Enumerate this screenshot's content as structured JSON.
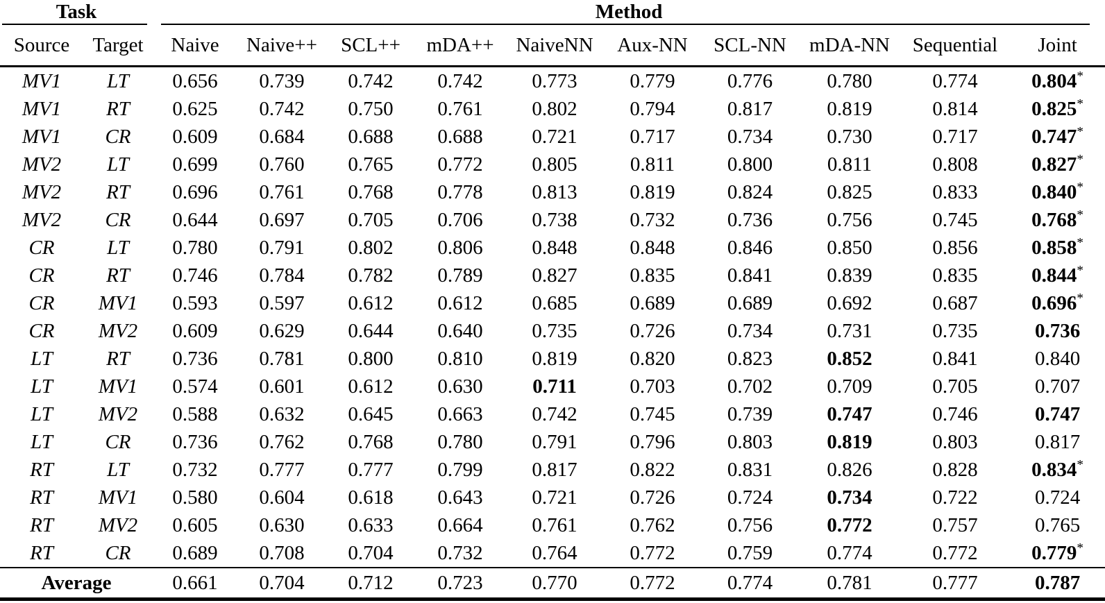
{
  "page": {
    "background": "#ffffff",
    "text_color": "#000000"
  },
  "table": {
    "group_headers": {
      "task": "Task",
      "method": "Method"
    },
    "columns": [
      "Source",
      "Target",
      "Naive",
      "Naive++",
      "SCL++",
      "mDA++",
      "NaiveNN",
      "Aux-NN",
      "SCL-NN",
      "mDA-NN",
      "Sequential",
      "Joint"
    ],
    "rows": [
      {
        "source": "MV1",
        "target": "LT",
        "values": [
          "0.656",
          "0.739",
          "0.742",
          "0.742",
          "0.773",
          "0.779",
          "0.776",
          "0.780",
          "0.774",
          "0.804"
        ],
        "bold": [
          9
        ],
        "star": [
          9
        ]
      },
      {
        "source": "MV1",
        "target": "RT",
        "values": [
          "0.625",
          "0.742",
          "0.750",
          "0.761",
          "0.802",
          "0.794",
          "0.817",
          "0.819",
          "0.814",
          "0.825"
        ],
        "bold": [
          9
        ],
        "star": [
          9
        ]
      },
      {
        "source": "MV1",
        "target": "CR",
        "values": [
          "0.609",
          "0.684",
          "0.688",
          "0.688",
          "0.721",
          "0.717",
          "0.734",
          "0.730",
          "0.717",
          "0.747"
        ],
        "bold": [
          9
        ],
        "star": [
          9
        ]
      },
      {
        "source": "MV2",
        "target": "LT",
        "values": [
          "0.699",
          "0.760",
          "0.765",
          "0.772",
          "0.805",
          "0.811",
          "0.800",
          "0.811",
          "0.808",
          "0.827"
        ],
        "bold": [
          9
        ],
        "star": [
          9
        ]
      },
      {
        "source": "MV2",
        "target": "RT",
        "values": [
          "0.696",
          "0.761",
          "0.768",
          "0.778",
          "0.813",
          "0.819",
          "0.824",
          "0.825",
          "0.833",
          "0.840"
        ],
        "bold": [
          9
        ],
        "star": [
          9
        ]
      },
      {
        "source": "MV2",
        "target": "CR",
        "values": [
          "0.644",
          "0.697",
          "0.705",
          "0.706",
          "0.738",
          "0.732",
          "0.736",
          "0.756",
          "0.745",
          "0.768"
        ],
        "bold": [
          9
        ],
        "star": [
          9
        ]
      },
      {
        "source": "CR",
        "target": "LT",
        "values": [
          "0.780",
          "0.791",
          "0.802",
          "0.806",
          "0.848",
          "0.848",
          "0.846",
          "0.850",
          "0.856",
          "0.858"
        ],
        "bold": [
          9
        ],
        "star": [
          9
        ]
      },
      {
        "source": "CR",
        "target": "RT",
        "values": [
          "0.746",
          "0.784",
          "0.782",
          "0.789",
          "0.827",
          "0.835",
          "0.841",
          "0.839",
          "0.835",
          "0.844"
        ],
        "bold": [
          9
        ],
        "star": [
          9
        ]
      },
      {
        "source": "CR",
        "target": "MV1",
        "values": [
          "0.593",
          "0.597",
          "0.612",
          "0.612",
          "0.685",
          "0.689",
          "0.689",
          "0.692",
          "0.687",
          "0.696"
        ],
        "bold": [
          9
        ],
        "star": [
          9
        ]
      },
      {
        "source": "CR",
        "target": "MV2",
        "values": [
          "0.609",
          "0.629",
          "0.644",
          "0.640",
          "0.735",
          "0.726",
          "0.734",
          "0.731",
          "0.735",
          "0.736"
        ],
        "bold": [
          9
        ],
        "star": []
      },
      {
        "source": "LT",
        "target": "RT",
        "values": [
          "0.736",
          "0.781",
          "0.800",
          "0.810",
          "0.819",
          "0.820",
          "0.823",
          "0.852",
          "0.841",
          "0.840"
        ],
        "bold": [
          7
        ],
        "star": []
      },
      {
        "source": "LT",
        "target": "MV1",
        "values": [
          "0.574",
          "0.601",
          "0.612",
          "0.630",
          "0.711",
          "0.703",
          "0.702",
          "0.709",
          "0.705",
          "0.707"
        ],
        "bold": [
          4
        ],
        "star": []
      },
      {
        "source": "LT",
        "target": "MV2",
        "values": [
          "0.588",
          "0.632",
          "0.645",
          "0.663",
          "0.742",
          "0.745",
          "0.739",
          "0.747",
          "0.746",
          "0.747"
        ],
        "bold": [
          7,
          9
        ],
        "star": []
      },
      {
        "source": "LT",
        "target": "CR",
        "values": [
          "0.736",
          "0.762",
          "0.768",
          "0.780",
          "0.791",
          "0.796",
          "0.803",
          "0.819",
          "0.803",
          "0.817"
        ],
        "bold": [
          7
        ],
        "star": []
      },
      {
        "source": "RT",
        "target": "LT",
        "values": [
          "0.732",
          "0.777",
          "0.777",
          "0.799",
          "0.817",
          "0.822",
          "0.831",
          "0.826",
          "0.828",
          "0.834"
        ],
        "bold": [
          9
        ],
        "star": [
          9
        ]
      },
      {
        "source": "RT",
        "target": "MV1",
        "values": [
          "0.580",
          "0.604",
          "0.618",
          "0.643",
          "0.721",
          "0.726",
          "0.724",
          "0.734",
          "0.722",
          "0.724"
        ],
        "bold": [
          7
        ],
        "star": []
      },
      {
        "source": "RT",
        "target": "MV2",
        "values": [
          "0.605",
          "0.630",
          "0.633",
          "0.664",
          "0.761",
          "0.762",
          "0.756",
          "0.772",
          "0.757",
          "0.765"
        ],
        "bold": [
          7
        ],
        "star": []
      },
      {
        "source": "RT",
        "target": "CR",
        "values": [
          "0.689",
          "0.708",
          "0.704",
          "0.732",
          "0.764",
          "0.772",
          "0.759",
          "0.774",
          "0.772",
          "0.779"
        ],
        "bold": [
          9
        ],
        "star": [
          9
        ]
      }
    ],
    "average": {
      "label": "Average",
      "values": [
        "0.661",
        "0.704",
        "0.712",
        "0.723",
        "0.770",
        "0.772",
        "0.774",
        "0.781",
        "0.777",
        "0.787"
      ],
      "bold": [
        9
      ],
      "star": []
    }
  }
}
